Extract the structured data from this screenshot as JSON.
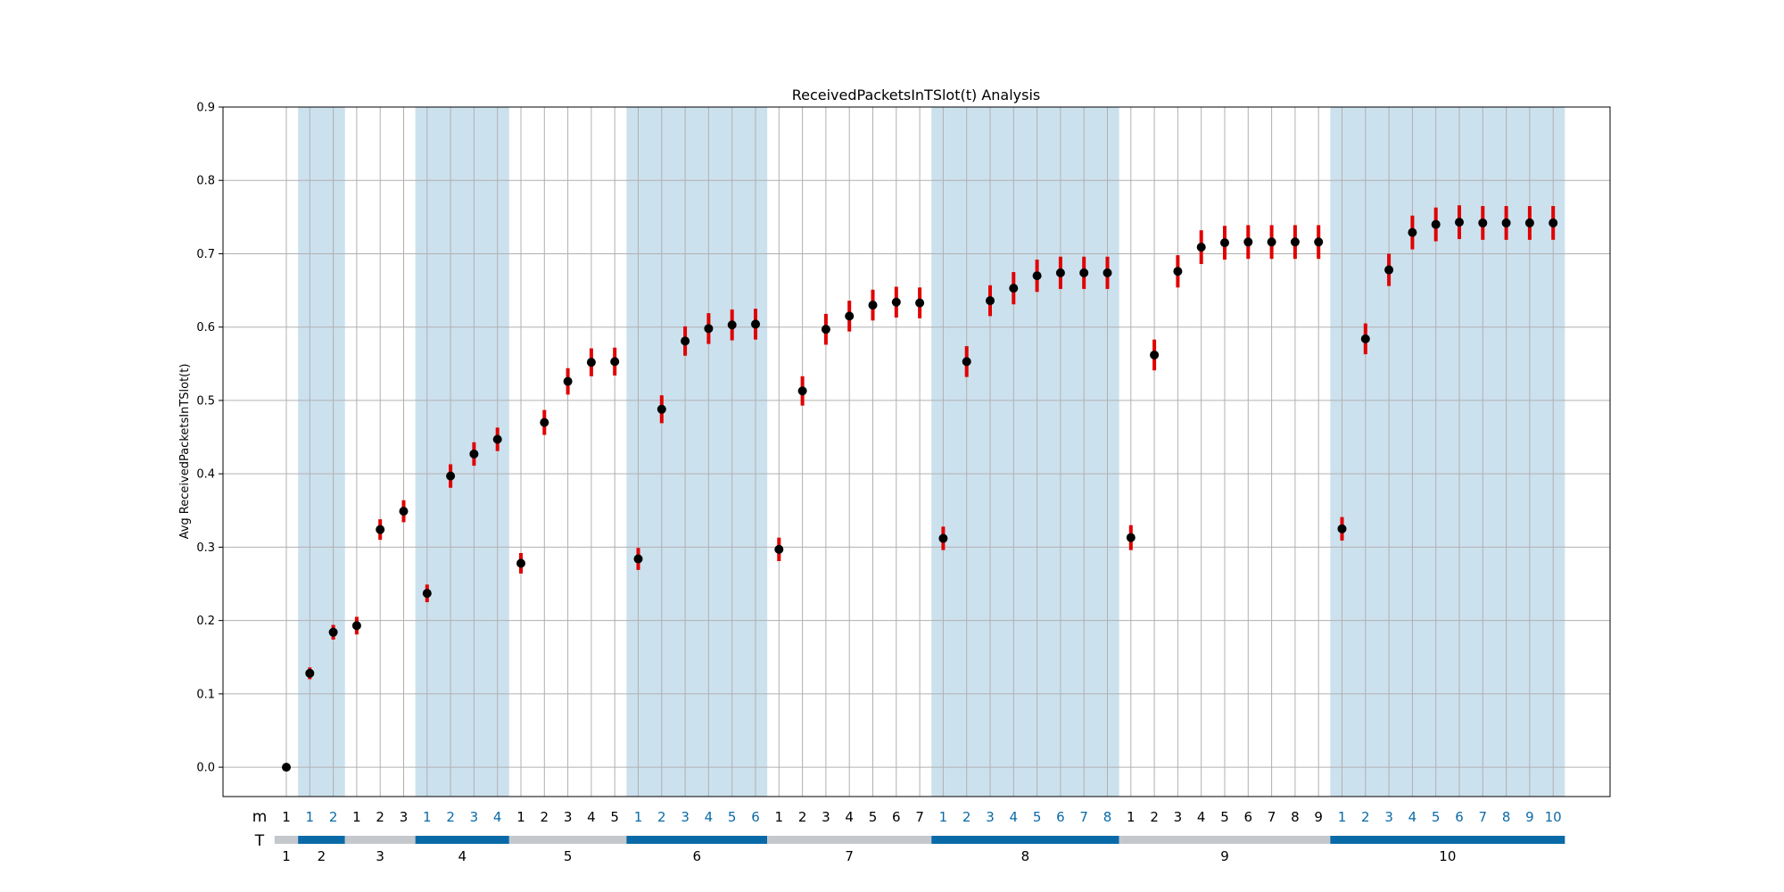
{
  "chart_data": {
    "type": "scatter",
    "title": "ReceivedPacketsInTSlot(t) Analysis",
    "ylabel": "Avg ReceivedPacketsInTSlot(t)",
    "xlabel": "",
    "ylim": [
      -0.04,
      0.9
    ],
    "yticks": [
      "0.0",
      "0.1",
      "0.2",
      "0.3",
      "0.4",
      "0.5",
      "0.6",
      "0.7",
      "0.8",
      "0.9"
    ],
    "grid": true,
    "row_labels": {
      "m": "m",
      "T": "T"
    },
    "colors": {
      "point": "#000000",
      "errorbar": "#e00000",
      "band_shade": "#cce1ee",
      "bar_gray": "#c4c8cc",
      "bar_blue": "#0a6aa8",
      "m_label_blue": "#0a6aa8",
      "m_label_black": "#000000",
      "grid": "#b0b0b0"
    },
    "groups": [
      {
        "T": "1",
        "m": [
          "1"
        ],
        "values": [
          0.0
        ],
        "errors": [
          0.0
        ]
      },
      {
        "T": "2",
        "m": [
          "1",
          "2"
        ],
        "values": [
          0.128,
          0.184
        ],
        "errors": [
          0.008,
          0.01
        ]
      },
      {
        "T": "3",
        "m": [
          "1",
          "2",
          "3"
        ],
        "values": [
          0.193,
          0.324,
          0.349
        ],
        "errors": [
          0.012,
          0.014,
          0.015
        ]
      },
      {
        "T": "4",
        "m": [
          "1",
          "2",
          "3",
          "4"
        ],
        "values": [
          0.237,
          0.397,
          0.427,
          0.447
        ],
        "errors": [
          0.012,
          0.016,
          0.016,
          0.016
        ]
      },
      {
        "T": "5",
        "m": [
          "1",
          "2",
          "3",
          "4",
          "5"
        ],
        "values": [
          0.278,
          0.47,
          0.526,
          0.552,
          0.553
        ],
        "errors": [
          0.014,
          0.017,
          0.018,
          0.019,
          0.019
        ]
      },
      {
        "T": "6",
        "m": [
          "1",
          "2",
          "3",
          "4",
          "5",
          "6"
        ],
        "values": [
          0.284,
          0.488,
          0.581,
          0.598,
          0.603,
          0.604
        ],
        "errors": [
          0.015,
          0.019,
          0.02,
          0.021,
          0.021,
          0.021
        ]
      },
      {
        "T": "7",
        "m": [
          "1",
          "2",
          "3",
          "4",
          "5",
          "6",
          "7"
        ],
        "values": [
          0.297,
          0.513,
          0.597,
          0.615,
          0.63,
          0.634,
          0.633
        ],
        "errors": [
          0.016,
          0.02,
          0.021,
          0.021,
          0.021,
          0.021,
          0.021
        ]
      },
      {
        "T": "8",
        "m": [
          "1",
          "2",
          "3",
          "4",
          "5",
          "6",
          "7",
          "8"
        ],
        "values": [
          0.312,
          0.553,
          0.636,
          0.653,
          0.67,
          0.674,
          0.674,
          0.674
        ],
        "errors": [
          0.016,
          0.021,
          0.021,
          0.022,
          0.022,
          0.022,
          0.022,
          0.022
        ]
      },
      {
        "T": "9",
        "m": [
          "1",
          "2",
          "3",
          "4",
          "5",
          "6",
          "7",
          "8",
          "9"
        ],
        "values": [
          0.313,
          0.562,
          0.676,
          0.709,
          0.715,
          0.716,
          0.716,
          0.716,
          0.716
        ],
        "errors": [
          0.017,
          0.021,
          0.022,
          0.023,
          0.023,
          0.023,
          0.023,
          0.023,
          0.023
        ]
      },
      {
        "T": "10",
        "m": [
          "1",
          "2",
          "3",
          "4",
          "5",
          "6",
          "7",
          "8",
          "9",
          "10"
        ],
        "values": [
          0.325,
          0.584,
          0.678,
          0.729,
          0.74,
          0.743,
          0.742,
          0.742,
          0.742,
          0.742
        ],
        "errors": [
          0.016,
          0.021,
          0.022,
          0.023,
          0.023,
          0.023,
          0.023,
          0.023,
          0.023,
          0.023
        ]
      }
    ]
  }
}
